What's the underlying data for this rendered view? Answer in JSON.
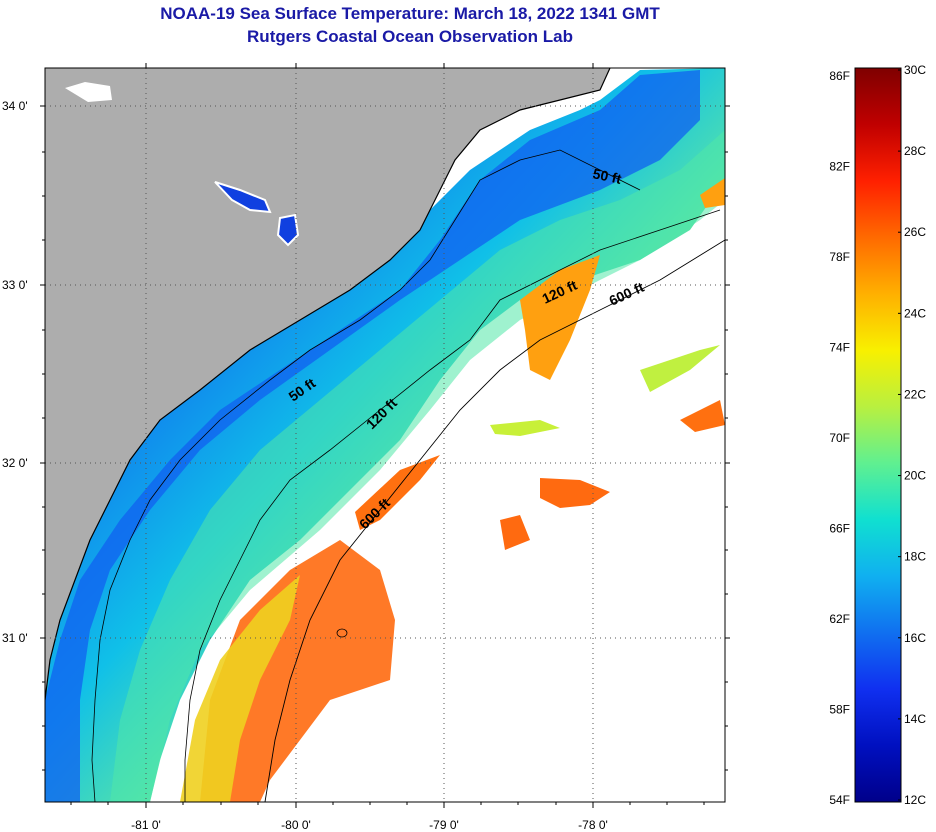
{
  "title_line1": "NOAA-19 Sea Surface Temperature:  March 18, 2022 1341 GMT",
  "title_line2": "Rutgers Coastal Ocean Observation Lab",
  "map": {
    "lat_labels": [
      "34 0'",
      "33 0'",
      "32 0'",
      "31 0'"
    ],
    "lon_labels": [
      "-81 0'",
      "-80 0'",
      "-79 0'",
      "-78 0'"
    ],
    "contour_labels": [
      "50 ft",
      "120 ft",
      "600 ft",
      "50 ft",
      "120 ft",
      "600 ft"
    ]
  },
  "colorbar": {
    "fahrenheit_labels": [
      "86F",
      "82F",
      "78F",
      "74F",
      "70F",
      "66F",
      "62F",
      "58F",
      "54F"
    ],
    "celsius_labels": [
      "30C",
      "28C",
      "26C",
      "24C",
      "22C",
      "20C",
      "18C",
      "16C",
      "14C",
      "12C"
    ],
    "gradient_colors": [
      "#7f0000",
      "#c00000",
      "#ff2000",
      "#ff6a00",
      "#ffb000",
      "#f8f000",
      "#b8f040",
      "#60f090",
      "#10e0d0",
      "#10b0f0",
      "#1070f0",
      "#1030f0",
      "#0010c0",
      "#00008a"
    ]
  },
  "colors": {
    "land": "#adadad",
    "no_data": "#ffffff",
    "title": "#1a1aa6"
  }
}
